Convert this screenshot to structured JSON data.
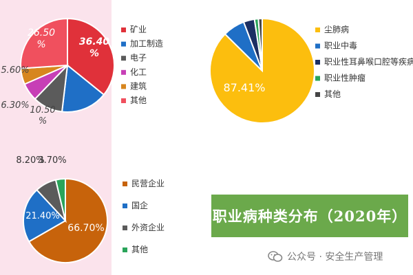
{
  "page": {
    "title": "职业病种类分布（2020年）"
  },
  "footer": {
    "text": "公众号 · 安全生产管理"
  },
  "chart_data": [
    {
      "type": "pie",
      "title": "",
      "categories": [
        "矿业",
        "加工制造",
        "电子",
        "化工",
        "建筑",
        "其他"
      ],
      "values": [
        36.4,
        16.3,
        10.5,
        6.3,
        5.6,
        26.5
      ],
      "labels": [
        "36.40\n%",
        "",
        "10.50\n%",
        "6.30%",
        "5.60%",
        "26.50\n%"
      ],
      "colors": [
        "#e0313a",
        "#1f6fc6",
        "#5b5b5b",
        "#c73fb6",
        "#d7861f",
        "#f0505e"
      ],
      "legend_position": "right"
    },
    {
      "type": "pie",
      "title": "",
      "categories": [
        "尘肺病",
        "职业中毒",
        "职业性耳鼻喉口腔等疾病",
        "职业性肿瘤",
        "其他"
      ],
      "values": [
        87.41,
        6.8,
        3.4,
        1.2,
        1.19
      ],
      "labels": [
        "87.41%",
        "",
        "",
        "",
        ""
      ],
      "colors": [
        "#fcbe0e",
        "#1f6fc6",
        "#1b2f63",
        "#2aa45a",
        "#454545"
      ],
      "legend_position": "right"
    },
    {
      "type": "pie",
      "title": "",
      "categories": [
        "民营企业",
        "国企",
        "外资企业",
        "其他"
      ],
      "values": [
        66.7,
        21.4,
        8.2,
        3.7
      ],
      "labels": [
        "66.70%",
        "21.40%",
        "8.20%",
        "3.70%"
      ],
      "colors": [
        "#c7630b",
        "#1f6fc6",
        "#5b5b5b",
        "#2aa45a"
      ],
      "legend_position": "right"
    }
  ]
}
